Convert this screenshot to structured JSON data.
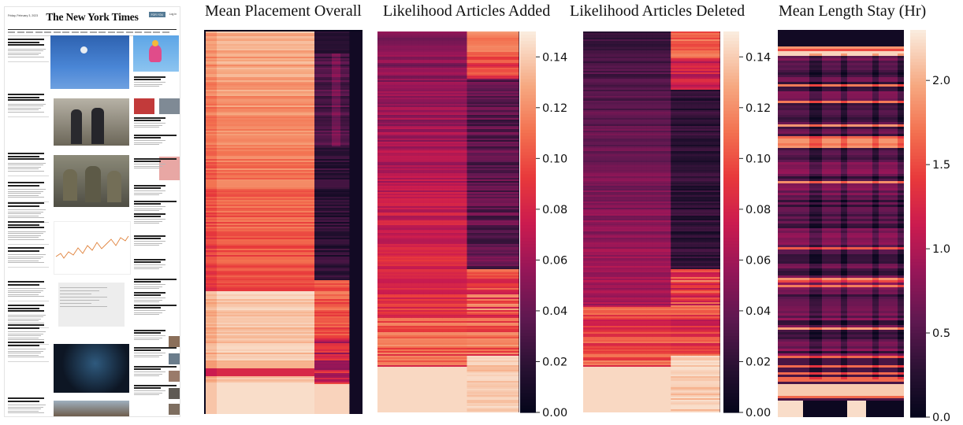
{
  "screenshot": {
    "nyt_page": {
      "masthead": "The New York Times",
      "date_line": "Friday, February 3, 2023",
      "subscribe_label": "FOR YOU",
      "login_label": "Log in"
    }
  },
  "colors": {
    "cmap": "rocket",
    "low": "#03051a",
    "high": "#faebdd"
  },
  "chart_data": [
    {
      "type": "heatmap",
      "title": "Mean Placement Overall",
      "colorbar": false,
      "profile": "placement"
    },
    {
      "type": "heatmap",
      "title": "Likelihood Articles Added",
      "colorbar": true,
      "vmin": 0,
      "vmax": 0.15,
      "colorbar_ticks": [
        0.0,
        0.02,
        0.04,
        0.06,
        0.08,
        0.1,
        0.12,
        0.14
      ],
      "colorbar_tick_labels": [
        "0.00",
        "0.02",
        "0.04",
        "0.06",
        "0.08",
        "0.10",
        "0.12",
        "0.14"
      ],
      "profile": "added"
    },
    {
      "type": "heatmap",
      "title": "Likelihood Articles Deleted",
      "colorbar": true,
      "vmin": 0,
      "vmax": 0.15,
      "colorbar_ticks": [
        0.0,
        0.02,
        0.04,
        0.06,
        0.08,
        0.1,
        0.12,
        0.14
      ],
      "colorbar_tick_labels": [
        "0.00",
        "0.02",
        "0.04",
        "0.06",
        "0.08",
        "0.10",
        "0.12",
        "0.14"
      ],
      "profile": "deleted"
    },
    {
      "type": "heatmap",
      "title": "Mean Length Stay (Hr)",
      "colorbar": true,
      "vmin": 0,
      "vmax": 2.3,
      "colorbar_ticks": [
        0.0,
        0.5,
        1.0,
        1.5,
        2.0
      ],
      "colorbar_tick_labels": [
        "0.0",
        "0.5",
        "1.0",
        "1.5",
        "2.0"
      ],
      "profile": "stay"
    }
  ]
}
